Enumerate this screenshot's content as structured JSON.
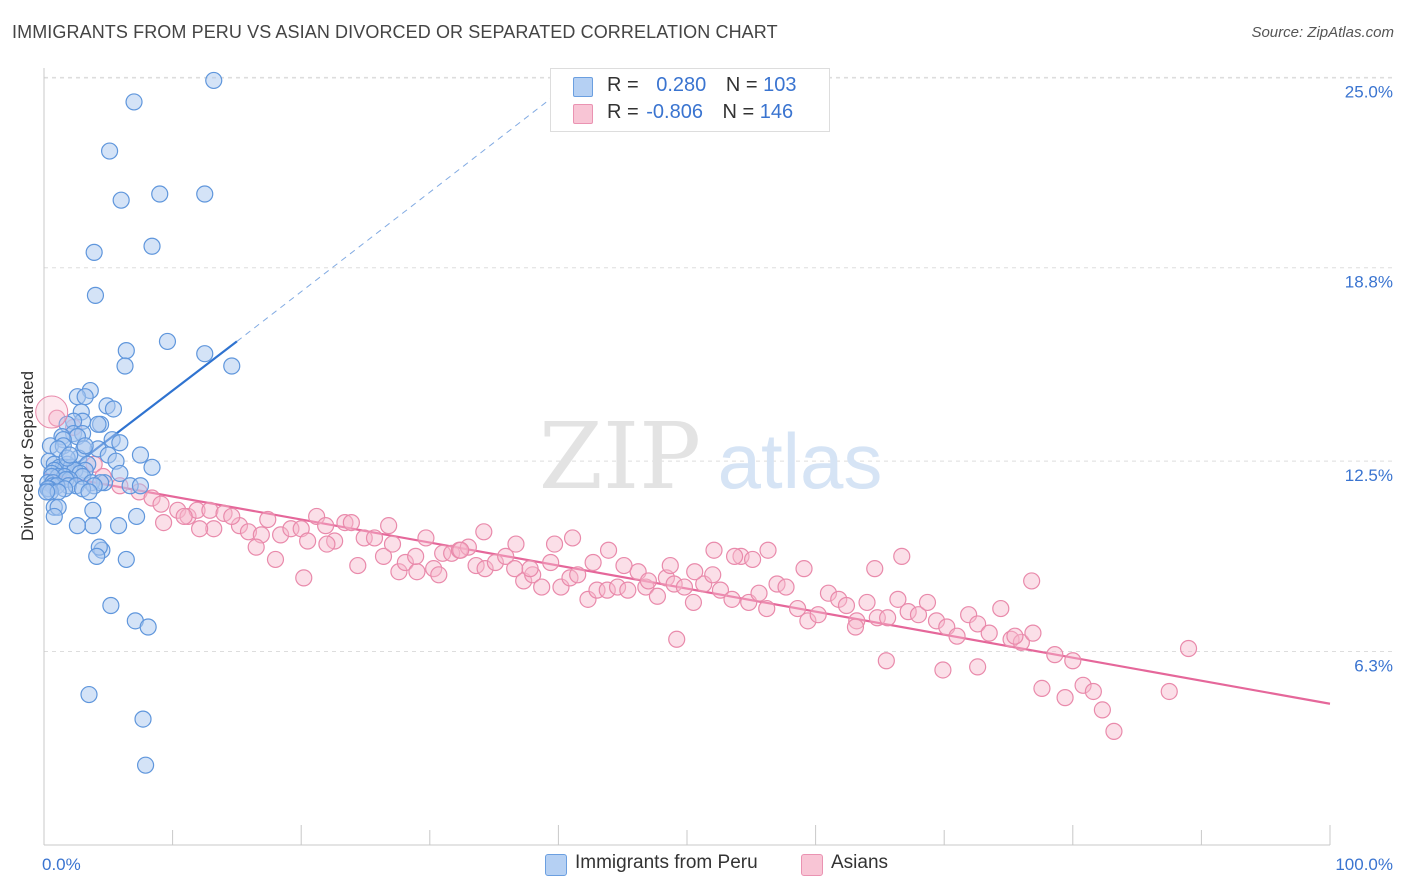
{
  "title": "IMMIGRANTS FROM PERU VS ASIAN DIVORCED OR SEPARATED CORRELATION CHART",
  "source": "Source: ZipAtlas.com",
  "watermark": {
    "zip": "ZIP",
    "atlas": "atlas"
  },
  "colors": {
    "peru_fill": "#a9c8f0",
    "peru_stroke": "#5f96dc",
    "peru_line": "#2f73d0",
    "asian_fill": "#f7b9cc",
    "asian_stroke": "#e98aab",
    "asian_line": "#e5679a",
    "axis_label": "#3a74d0",
    "grid": "#dddddd"
  },
  "legend": {
    "rows": [
      {
        "r_label": "R =",
        "r_value": "0.280",
        "n_label": "N =",
        "n_value": "103"
      },
      {
        "r_label": "R =",
        "r_value": "-0.806",
        "n_label": "N =",
        "n_value": "146"
      }
    ]
  },
  "bottom_legend": [
    "Immigrants from Peru",
    "Asians"
  ],
  "chart_data": {
    "type": "scatter",
    "title": "IMMIGRANTS FROM PERU VS ASIAN DIVORCED OR SEPARATED CORRELATION CHART",
    "xlabel": "",
    "ylabel": "Divorced or Separated",
    "xlim": [
      0,
      100
    ],
    "ylim": [
      0,
      25.5
    ],
    "x_tick_labels": [
      "0.0%",
      "100.0%"
    ],
    "y_ticks": [
      6.3,
      12.5,
      18.8,
      25.0
    ],
    "y_tick_labels": [
      "6.3%",
      "12.5%",
      "18.8%",
      "25.0%"
    ],
    "grid": true,
    "legend_position": "top-center",
    "series": [
      {
        "name": "Immigrants from Peru",
        "r": 0.28,
        "n": 103,
        "trend": {
          "x": [
            0.0,
            15.0
          ],
          "y": [
            11.6,
            16.4
          ],
          "dashed_to": [
            40.0,
            24.5
          ]
        },
        "points": [
          [
            13.2,
            24.9
          ],
          [
            7.0,
            24.2
          ],
          [
            5.1,
            22.6
          ],
          [
            6.0,
            21.0
          ],
          [
            9.0,
            21.2
          ],
          [
            12.5,
            21.2
          ],
          [
            8.4,
            19.5
          ],
          [
            3.9,
            19.3
          ],
          [
            4.0,
            17.9
          ],
          [
            9.6,
            16.4
          ],
          [
            6.4,
            16.1
          ],
          [
            12.5,
            16.0
          ],
          [
            6.3,
            15.6
          ],
          [
            14.6,
            15.6
          ],
          [
            3.6,
            14.8
          ],
          [
            2.6,
            14.6
          ],
          [
            3.2,
            14.6
          ],
          [
            4.9,
            14.3
          ],
          [
            5.4,
            14.2
          ],
          [
            2.9,
            14.1
          ],
          [
            3.0,
            13.8
          ],
          [
            2.3,
            13.8
          ],
          [
            4.4,
            13.7
          ],
          [
            4.2,
            13.7
          ],
          [
            1.8,
            13.7
          ],
          [
            2.3,
            13.4
          ],
          [
            3.0,
            13.4
          ],
          [
            1.4,
            13.3
          ],
          [
            2.6,
            13.3
          ],
          [
            1.5,
            13.2
          ],
          [
            5.3,
            13.2
          ],
          [
            5.9,
            13.1
          ],
          [
            0.5,
            13.0
          ],
          [
            1.5,
            13.0
          ],
          [
            4.2,
            12.9
          ],
          [
            3.1,
            12.9
          ],
          [
            1.1,
            12.9
          ],
          [
            5.0,
            12.7
          ],
          [
            7.5,
            12.7
          ],
          [
            2.7,
            12.6
          ],
          [
            5.6,
            12.5
          ],
          [
            0.4,
            12.5
          ],
          [
            1.8,
            12.4
          ],
          [
            3.4,
            12.4
          ],
          [
            0.8,
            12.4
          ],
          [
            1.5,
            12.3
          ],
          [
            1.2,
            12.3
          ],
          [
            1.7,
            12.3
          ],
          [
            8.4,
            12.3
          ],
          [
            2.1,
            12.3
          ],
          [
            3.2,
            12.2
          ],
          [
            0.8,
            12.2
          ],
          [
            2.4,
            12.2
          ],
          [
            0.6,
            12.1
          ],
          [
            2.8,
            12.1
          ],
          [
            5.9,
            12.1
          ],
          [
            1.1,
            12.0
          ],
          [
            3.0,
            12.0
          ],
          [
            1.6,
            12.0
          ],
          [
            0.6,
            12.0
          ],
          [
            2.0,
            11.9
          ],
          [
            1.7,
            11.9
          ],
          [
            4.7,
            11.8
          ],
          [
            0.3,
            11.8
          ],
          [
            0.7,
            11.8
          ],
          [
            3.7,
            11.8
          ],
          [
            4.4,
            11.8
          ],
          [
            1.9,
            11.7
          ],
          [
            6.7,
            11.7
          ],
          [
            0.7,
            11.7
          ],
          [
            7.5,
            11.7
          ],
          [
            1.0,
            11.7
          ],
          [
            2.5,
            11.7
          ],
          [
            3.9,
            11.7
          ],
          [
            0.4,
            11.6
          ],
          [
            3.0,
            11.6
          ],
          [
            1.6,
            11.6
          ],
          [
            0.3,
            11.6
          ],
          [
            0.5,
            11.5
          ],
          [
            1.1,
            11.5
          ],
          [
            0.2,
            11.5
          ],
          [
            3.5,
            11.5
          ],
          [
            0.8,
            11.0
          ],
          [
            1.1,
            11.0
          ],
          [
            3.8,
            10.9
          ],
          [
            7.2,
            10.7
          ],
          [
            0.8,
            10.7
          ],
          [
            5.8,
            10.4
          ],
          [
            3.8,
            10.4
          ],
          [
            2.6,
            10.4
          ],
          [
            4.5,
            9.6
          ],
          [
            4.3,
            9.7
          ],
          [
            4.1,
            9.4
          ],
          [
            6.4,
            9.3
          ],
          [
            5.2,
            7.8
          ],
          [
            7.1,
            7.3
          ],
          [
            8.1,
            7.1
          ],
          [
            3.5,
            4.9
          ],
          [
            7.7,
            4.1
          ],
          [
            7.9,
            2.6
          ],
          [
            1.8,
            12.6
          ],
          [
            3.2,
            13.0
          ],
          [
            2.0,
            12.7
          ]
        ]
      },
      {
        "name": "Asians",
        "r": -0.806,
        "n": 146,
        "trend": {
          "x": [
            0.0,
            100.0
          ],
          "y": [
            12.1,
            4.6
          ]
        },
        "points": [
          [
            1.0,
            13.9
          ],
          [
            2.3,
            13.6
          ],
          [
            3.9,
            12.4
          ],
          [
            4.6,
            12.0
          ],
          [
            5.9,
            11.7
          ],
          [
            7.4,
            11.5
          ],
          [
            8.4,
            11.3
          ],
          [
            9.1,
            11.1
          ],
          [
            10.4,
            10.9
          ],
          [
            11.2,
            10.7
          ],
          [
            11.9,
            10.9
          ],
          [
            12.9,
            10.9
          ],
          [
            13.2,
            10.3
          ],
          [
            14.0,
            10.8
          ],
          [
            15.2,
            10.4
          ],
          [
            15.9,
            10.2
          ],
          [
            16.9,
            10.1
          ],
          [
            17.4,
            10.6
          ],
          [
            18.4,
            10.1
          ],
          [
            19.2,
            10.3
          ],
          [
            20.0,
            10.3
          ],
          [
            20.5,
            9.9
          ],
          [
            21.2,
            10.7
          ],
          [
            21.9,
            10.4
          ],
          [
            22.6,
            9.9
          ],
          [
            23.4,
            10.5
          ],
          [
            23.9,
            10.5
          ],
          [
            24.9,
            10.0
          ],
          [
            25.7,
            10.0
          ],
          [
            26.4,
            9.4
          ],
          [
            26.8,
            10.4
          ],
          [
            27.6,
            8.9
          ],
          [
            28.1,
            9.2
          ],
          [
            29.0,
            8.9
          ],
          [
            29.7,
            10.0
          ],
          [
            30.3,
            9.0
          ],
          [
            31.0,
            9.5
          ],
          [
            31.7,
            9.5
          ],
          [
            32.3,
            9.6
          ],
          [
            33.0,
            9.7
          ],
          [
            33.6,
            9.1
          ],
          [
            34.3,
            9.0
          ],
          [
            35.1,
            9.2
          ],
          [
            35.9,
            9.4
          ],
          [
            36.6,
            9.0
          ],
          [
            37.3,
            8.6
          ],
          [
            38.0,
            8.8
          ],
          [
            38.7,
            8.4
          ],
          [
            39.4,
            9.2
          ],
          [
            40.2,
            8.4
          ],
          [
            40.9,
            8.7
          ],
          [
            41.5,
            8.8
          ],
          [
            42.3,
            8.0
          ],
          [
            43.0,
            8.3
          ],
          [
            43.8,
            8.3
          ],
          [
            44.6,
            8.4
          ],
          [
            45.4,
            8.3
          ],
          [
            46.2,
            8.9
          ],
          [
            46.8,
            8.4
          ],
          [
            47.7,
            8.1
          ],
          [
            48.4,
            8.7
          ],
          [
            49.0,
            8.5
          ],
          [
            49.8,
            8.4
          ],
          [
            50.5,
            7.9
          ],
          [
            51.3,
            8.5
          ],
          [
            52.0,
            8.8
          ],
          [
            52.6,
            8.3
          ],
          [
            53.5,
            8.0
          ],
          [
            54.2,
            9.4
          ],
          [
            54.8,
            7.9
          ],
          [
            55.6,
            8.2
          ],
          [
            56.2,
            7.7
          ],
          [
            57.0,
            8.5
          ],
          [
            57.7,
            8.4
          ],
          [
            58.6,
            7.7
          ],
          [
            59.4,
            7.3
          ],
          [
            60.2,
            7.5
          ],
          [
            61.0,
            8.2
          ],
          [
            61.8,
            8.0
          ],
          [
            62.4,
            7.8
          ],
          [
            63.2,
            7.3
          ],
          [
            64.0,
            7.9
          ],
          [
            64.8,
            7.4
          ],
          [
            65.6,
            7.4
          ],
          [
            66.4,
            8.0
          ],
          [
            67.2,
            7.6
          ],
          [
            68.0,
            7.5
          ],
          [
            68.7,
            7.9
          ],
          [
            69.4,
            7.3
          ],
          [
            70.2,
            7.1
          ],
          [
            71.0,
            6.8
          ],
          [
            71.9,
            7.5
          ],
          [
            72.6,
            7.2
          ],
          [
            73.5,
            6.9
          ],
          [
            74.4,
            7.7
          ],
          [
            75.2,
            6.7
          ],
          [
            76.0,
            6.6
          ],
          [
            76.9,
            6.9
          ],
          [
            77.6,
            5.1
          ],
          [
            78.6,
            6.2
          ],
          [
            79.4,
            4.8
          ],
          [
            80.0,
            6.0
          ],
          [
            80.8,
            5.2
          ],
          [
            81.6,
            5.0
          ],
          [
            82.3,
            4.4
          ],
          [
            83.2,
            3.7
          ],
          [
            87.5,
            5.0
          ],
          [
            89.0,
            6.4
          ],
          [
            49.2,
            6.7
          ],
          [
            63.1,
            7.1
          ],
          [
            65.5,
            6.0
          ],
          [
            69.9,
            5.7
          ],
          [
            72.6,
            5.8
          ],
          [
            75.5,
            6.8
          ],
          [
            76.8,
            8.6
          ],
          [
            66.7,
            9.4
          ],
          [
            64.6,
            9.0
          ],
          [
            59.1,
            9.0
          ],
          [
            56.3,
            9.6
          ],
          [
            55.1,
            9.3
          ],
          [
            53.7,
            9.4
          ],
          [
            52.1,
            9.6
          ],
          [
            50.6,
            8.9
          ],
          [
            48.7,
            9.1
          ],
          [
            47.0,
            8.6
          ],
          [
            45.1,
            9.1
          ],
          [
            43.9,
            9.6
          ],
          [
            42.7,
            9.2
          ],
          [
            41.1,
            10.0
          ],
          [
            39.7,
            9.8
          ],
          [
            37.8,
            9.0
          ],
          [
            36.7,
            9.8
          ],
          [
            34.2,
            10.2
          ],
          [
            32.4,
            9.6
          ],
          [
            30.7,
            8.8
          ],
          [
            28.9,
            9.4
          ],
          [
            27.1,
            9.8
          ],
          [
            24.4,
            9.1
          ],
          [
            22.0,
            9.8
          ],
          [
            20.2,
            8.7
          ],
          [
            18.0,
            9.3
          ],
          [
            16.5,
            9.7
          ],
          [
            14.6,
            10.7
          ],
          [
            12.1,
            10.3
          ],
          [
            10.9,
            10.7
          ],
          [
            9.3,
            10.5
          ]
        ]
      }
    ]
  }
}
